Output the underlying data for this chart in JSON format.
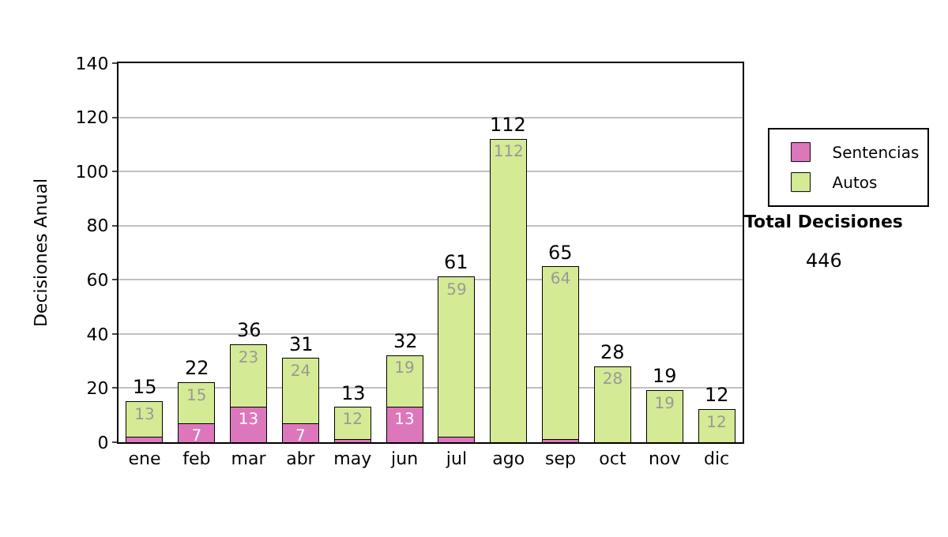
{
  "chart_data": {
    "type": "bar",
    "stacked": true,
    "ylabel": "Decisiones Anual",
    "categories": [
      "ene",
      "feb",
      "mar",
      "abr",
      "may",
      "jun",
      "jul",
      "ago",
      "sep",
      "oct",
      "nov",
      "dic"
    ],
    "series": [
      {
        "name": "Sentencias",
        "color": "#dd77bb",
        "values": [
          2,
          7,
          13,
          7,
          1,
          13,
          2,
          0,
          1,
          0,
          0,
          0
        ],
        "value_labels": [
          null,
          "7",
          "13",
          "7",
          null,
          "13",
          null,
          null,
          null,
          null,
          null,
          null
        ]
      },
      {
        "name": "Autos",
        "color": "#d4ea94",
        "values": [
          13,
          15,
          23,
          24,
          12,
          19,
          59,
          112,
          64,
          28,
          19,
          12
        ],
        "value_labels": [
          "13",
          "15",
          "23",
          "24",
          "12",
          "19",
          "59",
          "112",
          "64",
          "28",
          "19",
          "12"
        ]
      }
    ],
    "totals": [
      "15",
      "22",
      "36",
      "31",
      "13",
      "32",
      "61",
      "112",
      "65",
      "28",
      "19",
      "12"
    ],
    "ylim": [
      0,
      140
    ],
    "yticks": [
      0,
      20,
      40,
      60,
      80,
      100,
      120,
      140
    ],
    "grid": "y",
    "legend": "right",
    "annotations": [
      "Total Decisiones",
      "446"
    ]
  }
}
